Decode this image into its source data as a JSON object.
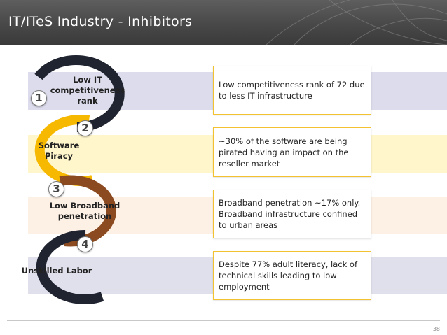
{
  "slide": {
    "title": "IT/ITeS Industry - Inhibitors",
    "page_number": "38"
  },
  "colors": {
    "header_bg": "#4a4a4a",
    "band_1": "#dcdcec",
    "band_2": "#fff6cc",
    "band_3": "#fdf0e4",
    "band_4": "#e0e0ec",
    "ring_1": "#1f2430",
    "ring_2": "#f6b900",
    "ring_3": "#8b4a1f",
    "ring_4": "#1f2430",
    "box_border": "#f2c230"
  },
  "inhibitors": [
    {
      "number": "1",
      "label": "Low IT competitiveness rank",
      "description": "Low competitiveness rank of 72 due to less IT infrastructure"
    },
    {
      "number": "2",
      "label": "Software Piracy",
      "description": "~30% of the software are being pirated having an impact on the reseller market"
    },
    {
      "number": "3",
      "label": "Low Broadband penetration",
      "description": "Broadband penetration ~17% only. Broadband infrastructure confined to urban areas"
    },
    {
      "number": "4",
      "label": "Unskilled Labor",
      "description": "Despite 77% adult literacy, lack of technical skills leading to low employment"
    }
  ]
}
